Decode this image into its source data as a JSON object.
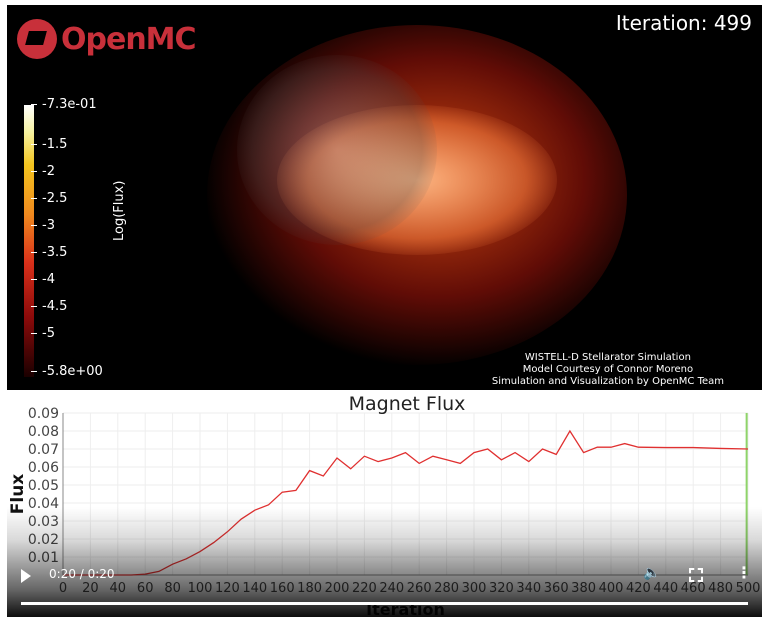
{
  "logo": {
    "text": "OpenMC"
  },
  "iteration_label": "Iteration: 499",
  "colorbar": {
    "title": "Log(Flux)",
    "ticks": [
      "-7.3e-01",
      "-1.5",
      "-2",
      "-2.5",
      "-3",
      "-3.5",
      "-4",
      "-4.5",
      "-5",
      "-5.8e+00"
    ]
  },
  "credits": [
    "WISTELL-D Stellarator Simulation",
    "Model Courtesy of Connor Moreno",
    "Simulation and Visualization by OpenMC Team"
  ],
  "player": {
    "time": "0:20 / 0:20",
    "progress": 1.0
  },
  "chart_data": {
    "type": "line",
    "title": "Magnet Flux",
    "xlabel": "Iteration",
    "ylabel": "Flux",
    "xlim": [
      0,
      500
    ],
    "ylim": [
      0,
      0.09
    ],
    "xticks": [
      0,
      20,
      40,
      60,
      80,
      100,
      120,
      140,
      160,
      180,
      200,
      220,
      240,
      260,
      280,
      300,
      320,
      340,
      360,
      380,
      400,
      420,
      440,
      460,
      480,
      500
    ],
    "yticks": [
      "0.01",
      "0.02",
      "0.03",
      "0.04",
      "0.05",
      "0.06",
      "0.07",
      "0.08",
      "0.09"
    ],
    "series": [
      {
        "name": "Flux",
        "color": "#e03030",
        "x": [
          0,
          10,
          20,
          30,
          40,
          50,
          60,
          70,
          80,
          90,
          100,
          110,
          120,
          130,
          140,
          150,
          160,
          170,
          180,
          190,
          200,
          210,
          220,
          230,
          240,
          250,
          260,
          270,
          280,
          290,
          300,
          310,
          320,
          330,
          340,
          350,
          360,
          370,
          380,
          390,
          400,
          410,
          420,
          440,
          460,
          480,
          500
        ],
        "y": [
          0,
          0,
          0,
          0,
          0,
          0,
          0.0005,
          0.002,
          0.006,
          0.009,
          0.013,
          0.018,
          0.024,
          0.031,
          0.036,
          0.039,
          0.046,
          0.047,
          0.058,
          0.055,
          0.065,
          0.059,
          0.066,
          0.063,
          0.065,
          0.068,
          0.062,
          0.066,
          0.064,
          0.062,
          0.068,
          0.07,
          0.064,
          0.068,
          0.063,
          0.07,
          0.067,
          0.08,
          0.068,
          0.071,
          0.071,
          0.073,
          0.071,
          0.0708,
          0.0708,
          0.0703,
          0.07
        ]
      }
    ],
    "marker_x": 499
  }
}
